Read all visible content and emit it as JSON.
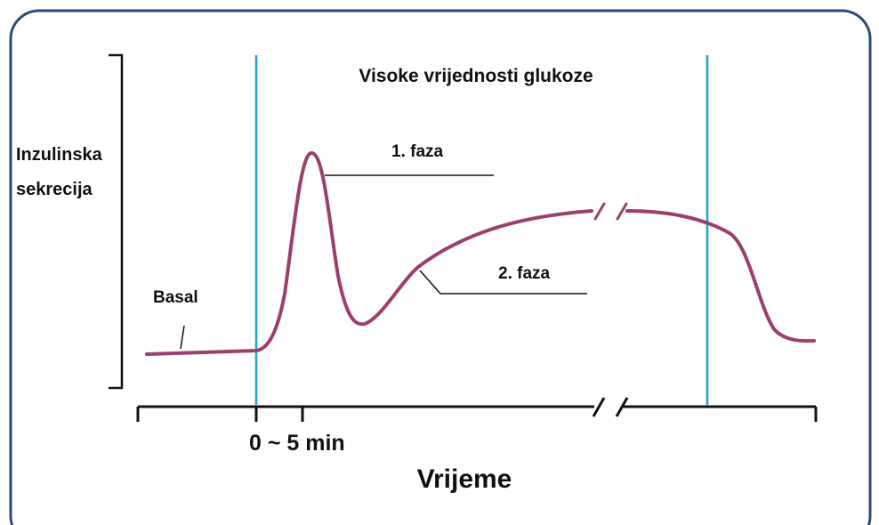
{
  "title": "Visoke vrijednosti glukoze",
  "y_label": [
    "Inzulinska",
    "sekrecija"
  ],
  "phases": [
    "1. faza",
    "2. faza"
  ],
  "basal": "Basal",
  "x_tick": "0 ~ 5 min",
  "x_label": "Vrijeme"
}
